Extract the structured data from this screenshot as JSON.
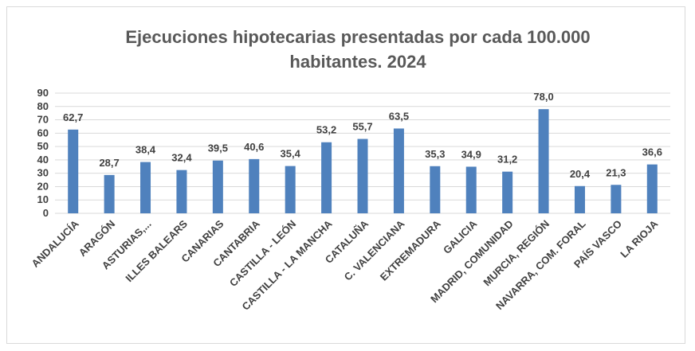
{
  "chart_data": {
    "type": "bar",
    "title": "Ejecuciones hipotecarias presentadas por cada 100.000 habitantes. 2024",
    "categories": [
      "ANDALUCÍA",
      "ARAGÓN",
      "ASTURIAS,...",
      "ILLES BALEARS",
      "CANARIAS",
      "CANTABRIA",
      "CASTILLA - LEÓN",
      "CASTILLA - LA MANCHA",
      "CATALUÑA",
      "C. VALENCIANA",
      "EXTREMADURA",
      "GALICIA",
      "MADRID, COMUNIDAD",
      "MURCIA, REGIÓN",
      "NAVARRA, COM. FORAL",
      "PAÍS VASCO",
      "LA RIOJA"
    ],
    "values": [
      62.7,
      28.7,
      38.4,
      32.4,
      39.5,
      40.6,
      35.4,
      53.2,
      55.7,
      63.5,
      35.3,
      34.9,
      31.2,
      78.0,
      20.4,
      21.3,
      36.6
    ],
    "value_labels": [
      "62,7",
      "28,7",
      "38,4",
      "32,4",
      "39,5",
      "40,6",
      "35,4",
      "53,2",
      "55,7",
      "63,5",
      "35,3",
      "34,9",
      "31,2",
      "78,0",
      "20,4",
      "21,3",
      "36,6"
    ],
    "ylim": [
      0,
      90
    ],
    "yticks": [
      0,
      10,
      20,
      30,
      40,
      50,
      60,
      70,
      80,
      90
    ],
    "grid": true,
    "legend": "none",
    "bar_color": "#4f81bd",
    "grid_color": "#d9d9d9"
  }
}
